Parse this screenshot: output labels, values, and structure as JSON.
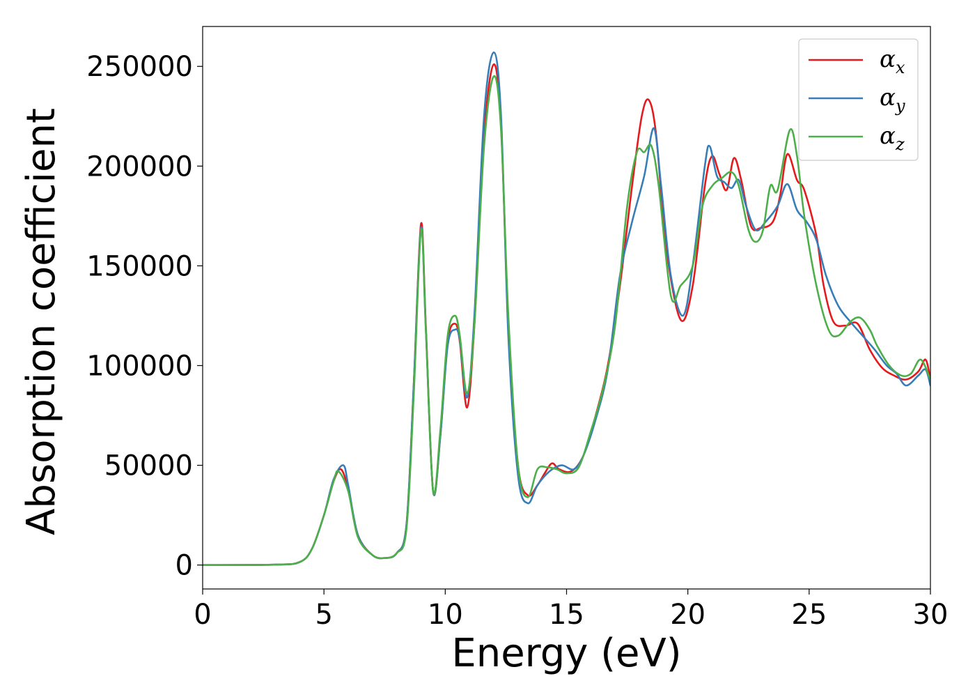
{
  "chart_data": {
    "type": "line",
    "xlabel": "Energy (eV)",
    "ylabel": "Absorption coefficient",
    "xlim": [
      0,
      30
    ],
    "ylim": [
      -12000,
      270000
    ],
    "xticks": [
      0,
      5,
      10,
      15,
      20,
      25,
      30
    ],
    "xtick_labels": [
      "0",
      "5",
      "10",
      "15",
      "20",
      "25",
      "30"
    ],
    "yticks": [
      0,
      50000,
      100000,
      150000,
      200000,
      250000
    ],
    "ytick_labels": [
      "0",
      "50000",
      "100000",
      "150000",
      "200000",
      "250000"
    ],
    "grid": false,
    "legend": "top-right",
    "series": [
      {
        "name": "α_x",
        "label_main": "α",
        "label_sub": "x",
        "color": "#e41a1c",
        "points": [
          [
            0,
            0
          ],
          [
            3,
            200
          ],
          [
            4,
            1500
          ],
          [
            4.5,
            8000
          ],
          [
            5,
            25000
          ],
          [
            5.4,
            42000
          ],
          [
            5.7,
            48000
          ],
          [
            6,
            38000
          ],
          [
            6.4,
            15000
          ],
          [
            7,
            5000
          ],
          [
            7.5,
            3500
          ],
          [
            8,
            6000
          ],
          [
            8.4,
            20000
          ],
          [
            8.7,
            90000
          ],
          [
            9,
            171000
          ],
          [
            9.2,
            120000
          ],
          [
            9.5,
            37000
          ],
          [
            9.8,
            65000
          ],
          [
            10.1,
            112000
          ],
          [
            10.4,
            121000
          ],
          [
            10.6,
            112000
          ],
          [
            10.9,
            79000
          ],
          [
            11.2,
            120000
          ],
          [
            11.6,
            215000
          ],
          [
            12,
            251000
          ],
          [
            12.3,
            220000
          ],
          [
            12.6,
            120000
          ],
          [
            13,
            50000
          ],
          [
            13.4,
            35000
          ],
          [
            13.8,
            40000
          ],
          [
            14.1,
            46000
          ],
          [
            14.4,
            51000
          ],
          [
            14.7,
            48000
          ],
          [
            15.2,
            47000
          ],
          [
            15.7,
            55000
          ],
          [
            16.2,
            75000
          ],
          [
            16.7,
            100000
          ],
          [
            17.2,
            140000
          ],
          [
            17.7,
            190000
          ],
          [
            18.1,
            225000
          ],
          [
            18.4,
            233000
          ],
          [
            18.7,
            215000
          ],
          [
            19.1,
            160000
          ],
          [
            19.7,
            123000
          ],
          [
            20.2,
            140000
          ],
          [
            20.7,
            190000
          ],
          [
            21,
            205000
          ],
          [
            21.3,
            196000
          ],
          [
            21.6,
            188000
          ],
          [
            21.9,
            204000
          ],
          [
            22.2,
            193000
          ],
          [
            22.6,
            170000
          ],
          [
            23,
            169000
          ],
          [
            23.5,
            172000
          ],
          [
            23.8,
            185000
          ],
          [
            24.1,
            206000
          ],
          [
            24.5,
            193000
          ],
          [
            24.8,
            188000
          ],
          [
            25.3,
            165000
          ],
          [
            25.6,
            140000
          ],
          [
            26,
            122000
          ],
          [
            26.5,
            120000
          ],
          [
            27,
            121000
          ],
          [
            27.5,
            108000
          ],
          [
            28,
            99000
          ],
          [
            28.5,
            95000
          ],
          [
            29,
            93000
          ],
          [
            29.5,
            97000
          ],
          [
            29.8,
            103000
          ],
          [
            30,
            93000
          ]
        ]
      },
      {
        "name": "α_y",
        "label_main": "α",
        "label_sub": "y",
        "color": "#377eb8",
        "points": [
          [
            0,
            0
          ],
          [
            3,
            200
          ],
          [
            4,
            1500
          ],
          [
            4.5,
            8000
          ],
          [
            5,
            25000
          ],
          [
            5.4,
            43000
          ],
          [
            5.8,
            50000
          ],
          [
            6,
            40000
          ],
          [
            6.4,
            15000
          ],
          [
            7,
            5000
          ],
          [
            7.5,
            3500
          ],
          [
            8,
            6000
          ],
          [
            8.4,
            20000
          ],
          [
            8.7,
            90000
          ],
          [
            9,
            169000
          ],
          [
            9.2,
            118000
          ],
          [
            9.5,
            37000
          ],
          [
            9.8,
            65000
          ],
          [
            10.1,
            110000
          ],
          [
            10.4,
            118000
          ],
          [
            10.6,
            113000
          ],
          [
            10.9,
            84000
          ],
          [
            11.2,
            125000
          ],
          [
            11.6,
            225000
          ],
          [
            12,
            257000
          ],
          [
            12.3,
            225000
          ],
          [
            12.6,
            115000
          ],
          [
            13,
            45000
          ],
          [
            13.4,
            31000
          ],
          [
            13.8,
            40000
          ],
          [
            14.3,
            47000
          ],
          [
            14.8,
            50000
          ],
          [
            15.3,
            48000
          ],
          [
            15.7,
            55000
          ],
          [
            16.2,
            73000
          ],
          [
            16.7,
            98000
          ],
          [
            17.2,
            145000
          ],
          [
            17.7,
            172000
          ],
          [
            18.2,
            195000
          ],
          [
            18.6,
            219000
          ],
          [
            18.9,
            190000
          ],
          [
            19.3,
            145000
          ],
          [
            19.8,
            125000
          ],
          [
            20.2,
            150000
          ],
          [
            20.7,
            200000
          ],
          [
            20.9,
            210000
          ],
          [
            21.2,
            195000
          ],
          [
            21.5,
            192000
          ],
          [
            21.8,
            189000
          ],
          [
            22.1,
            193000
          ],
          [
            22.4,
            180000
          ],
          [
            22.8,
            168000
          ],
          [
            23.2,
            172000
          ],
          [
            23.7,
            180000
          ],
          [
            24.1,
            191000
          ],
          [
            24.5,
            178000
          ],
          [
            24.9,
            172000
          ],
          [
            25.3,
            163000
          ],
          [
            25.7,
            145000
          ],
          [
            26.2,
            130000
          ],
          [
            26.7,
            122000
          ],
          [
            27.2,
            115000
          ],
          [
            27.7,
            108000
          ],
          [
            28.2,
            100000
          ],
          [
            28.6,
            96000
          ],
          [
            29,
            90000
          ],
          [
            29.5,
            95000
          ],
          [
            29.8,
            98000
          ],
          [
            30,
            90000
          ]
        ]
      },
      {
        "name": "α_z",
        "label_main": "α",
        "label_sub": "z",
        "color": "#4daf4a",
        "points": [
          [
            0,
            0
          ],
          [
            3,
            200
          ],
          [
            4,
            1500
          ],
          [
            4.5,
            8000
          ],
          [
            5,
            25000
          ],
          [
            5.4,
            42000
          ],
          [
            5.6,
            47000
          ],
          [
            6,
            37000
          ],
          [
            6.4,
            14000
          ],
          [
            7,
            5000
          ],
          [
            7.5,
            3500
          ],
          [
            8,
            6000
          ],
          [
            8.4,
            18000
          ],
          [
            8.7,
            85000
          ],
          [
            9,
            168000
          ],
          [
            9.2,
            118000
          ],
          [
            9.5,
            37000
          ],
          [
            9.8,
            68000
          ],
          [
            10.1,
            115000
          ],
          [
            10.4,
            125000
          ],
          [
            10.6,
            115000
          ],
          [
            10.9,
            86000
          ],
          [
            11.2,
            120000
          ],
          [
            11.6,
            210000
          ],
          [
            12,
            245000
          ],
          [
            12.3,
            218000
          ],
          [
            12.6,
            125000
          ],
          [
            13,
            50000
          ],
          [
            13.4,
            34000
          ],
          [
            13.8,
            48000
          ],
          [
            14.2,
            49000
          ],
          [
            14.6,
            48000
          ],
          [
            15,
            46000
          ],
          [
            15.5,
            49000
          ],
          [
            16,
            67000
          ],
          [
            16.5,
            88000
          ],
          [
            17,
            120000
          ],
          [
            17.5,
            180000
          ],
          [
            17.9,
            207000
          ],
          [
            18.2,
            207000
          ],
          [
            18.5,
            210000
          ],
          [
            18.8,
            190000
          ],
          [
            19.3,
            135000
          ],
          [
            19.7,
            140000
          ],
          [
            20.2,
            150000
          ],
          [
            20.6,
            180000
          ],
          [
            21,
            190000
          ],
          [
            21.4,
            194000
          ],
          [
            21.8,
            197000
          ],
          [
            22.1,
            190000
          ],
          [
            22.5,
            168000
          ],
          [
            22.8,
            162000
          ],
          [
            23.1,
            168000
          ],
          [
            23.4,
            190000
          ],
          [
            23.7,
            188000
          ],
          [
            24.2,
            218000
          ],
          [
            24.5,
            205000
          ],
          [
            24.8,
            175000
          ],
          [
            25.3,
            140000
          ],
          [
            25.8,
            118000
          ],
          [
            26.2,
            115000
          ],
          [
            26.7,
            122000
          ],
          [
            27.1,
            124000
          ],
          [
            27.5,
            118000
          ],
          [
            27.8,
            110000
          ],
          [
            28.3,
            100000
          ],
          [
            28.8,
            95000
          ],
          [
            29.2,
            96000
          ],
          [
            29.6,
            103000
          ],
          [
            30,
            93000
          ]
        ]
      }
    ]
  }
}
